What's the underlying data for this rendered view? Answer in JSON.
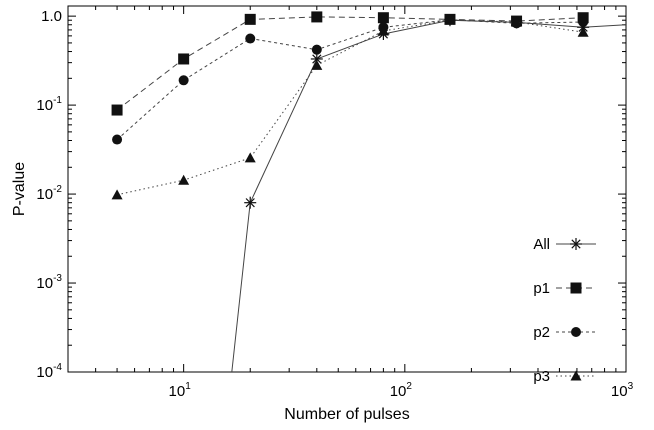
{
  "chart_data": {
    "type": "line",
    "title": "",
    "xlabel": "Number of pulses",
    "ylabel": "P-value",
    "xscale": "log",
    "yscale": "log",
    "xlim": [
      3,
      1000
    ],
    "ylim": [
      0.0001,
      1.3
    ],
    "grid": false,
    "legend_position": "bottom-right",
    "x_ticks": [
      {
        "value": 10,
        "base": "10",
        "exp": "1"
      },
      {
        "value": 100,
        "base": "10",
        "exp": "2"
      },
      {
        "value": 1000,
        "base": "10",
        "exp": "3"
      }
    ],
    "y_ticks": [
      {
        "value": 0.0001,
        "base": "10",
        "exp": "-4"
      },
      {
        "value": 0.001,
        "base": "10",
        "exp": "-3"
      },
      {
        "value": 0.01,
        "base": "10",
        "exp": "-2"
      },
      {
        "value": 0.1,
        "base": "10",
        "exp": "-1"
      },
      {
        "value": 1,
        "base": "10",
        "exp": "0",
        "plain": "1.0"
      }
    ],
    "series": [
      {
        "name": "All",
        "marker": "star",
        "line": "solid",
        "color": "#222222",
        "x": [
          16.5,
          20,
          40,
          80,
          160,
          320,
          640,
          1000
        ],
        "y": [
          0.0001,
          0.008,
          0.33,
          0.63,
          0.9,
          0.85,
          0.75,
          0.8
        ]
      },
      {
        "name": "p1",
        "marker": "square",
        "line": "dashed",
        "color": "#222222",
        "x": [
          5,
          10,
          20,
          40,
          80,
          160,
          320,
          640
        ],
        "y": [
          0.088,
          0.33,
          0.92,
          0.98,
          0.96,
          0.92,
          0.88,
          0.96
        ]
      },
      {
        "name": "p2",
        "marker": "circle",
        "line": "dash-dot",
        "color": "#222222",
        "x": [
          5,
          10,
          20,
          40,
          80,
          160,
          320,
          640
        ],
        "y": [
          0.041,
          0.19,
          0.56,
          0.42,
          0.75,
          0.91,
          0.83,
          0.86
        ]
      },
      {
        "name": "p3",
        "marker": "triangle",
        "line": "dotted",
        "color": "#222222",
        "x": [
          5,
          10,
          20,
          40,
          80,
          160,
          320,
          640
        ],
        "y": [
          0.0098,
          0.0143,
          0.0255,
          0.28,
          0.68,
          0.91,
          0.86,
          0.66
        ]
      }
    ]
  }
}
